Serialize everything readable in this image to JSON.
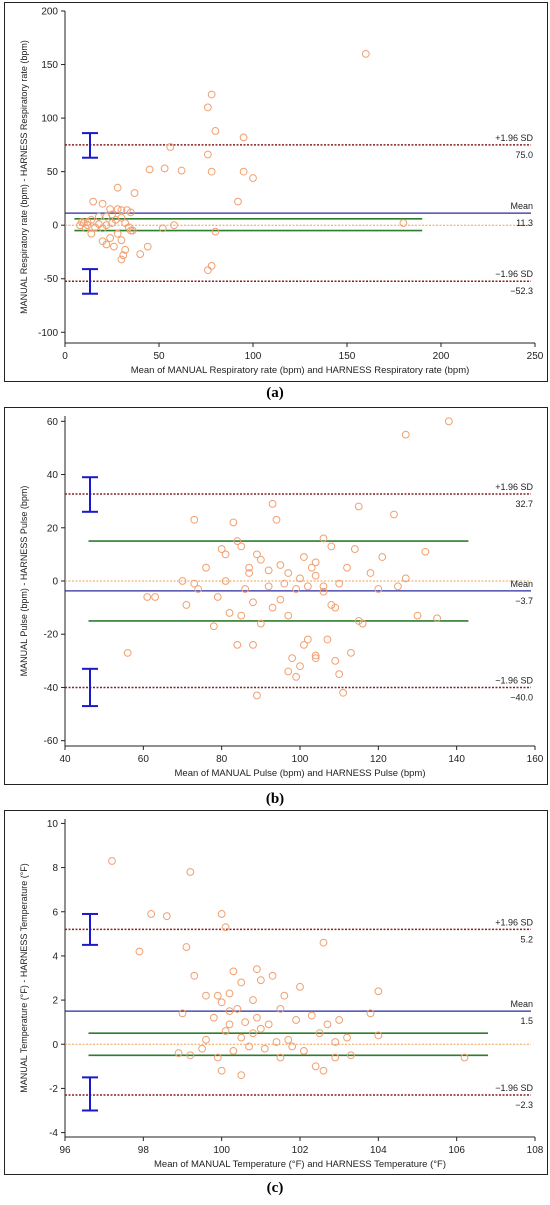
{
  "colors": {
    "point": "#f0a070",
    "mean": "#2a2aa0",
    "loa": "#8b2020",
    "green": "#2e7d2e",
    "zero": "#f0a050",
    "ci": "#1a1acc",
    "axis": "#222222"
  },
  "chart_data": [
    {
      "type": "scatter",
      "caption": "(a)",
      "xlabel": "Mean of MANUAL Respiratory rate (bpm) and HARNESS Respiratory rate (bpm)",
      "ylabel": "MANUAL Respiratory rate (bpm) - HARNESS Respiratory rate (bpm)",
      "xlim": [
        0,
        250
      ],
      "ylim": [
        -110,
        200
      ],
      "xticks": [
        0,
        50,
        100,
        150,
        200,
        250
      ],
      "yticks": [
        -100,
        -50,
        0,
        50,
        100,
        150,
        200
      ],
      "mean": 11.3,
      "upper_loa": 75.0,
      "lower_loa": -52.3,
      "labels": {
        "upper": "+1.96 SD",
        "upper_value": "75.0",
        "mean": "Mean",
        "mean_value": "11.3",
        "lower": "−1.96 SD",
        "lower_value": "−52.3"
      },
      "upper_ci": [
        63,
        86
      ],
      "lower_ci": [
        -64,
        -41
      ],
      "green_lines": [
        6,
        -5
      ],
      "green_xrange": [
        5,
        190
      ],
      "points": [
        [
          160,
          160
        ],
        [
          78,
          122
        ],
        [
          76,
          110
        ],
        [
          80,
          88
        ],
        [
          95,
          82
        ],
        [
          56,
          73
        ],
        [
          76,
          66
        ],
        [
          95,
          50
        ],
        [
          78,
          50
        ],
        [
          100,
          44
        ],
        [
          45,
          52
        ],
        [
          53,
          53
        ],
        [
          62,
          51
        ],
        [
          28,
          35
        ],
        [
          37,
          30
        ],
        [
          20,
          20
        ],
        [
          15,
          22
        ],
        [
          24,
          15
        ],
        [
          28,
          15
        ],
        [
          30,
          14
        ],
        [
          33,
          14
        ],
        [
          35,
          12
        ],
        [
          25,
          10
        ],
        [
          22,
          8
        ],
        [
          18,
          8
        ],
        [
          14,
          5
        ],
        [
          12,
          3
        ],
        [
          10,
          2
        ],
        [
          8,
          0
        ],
        [
          12,
          0
        ],
        [
          16,
          -2
        ],
        [
          20,
          -3
        ],
        [
          18,
          1
        ],
        [
          22,
          0
        ],
        [
          25,
          2
        ],
        [
          27,
          5
        ],
        [
          30,
          7
        ],
        [
          32,
          2
        ],
        [
          34,
          -2
        ],
        [
          36,
          -5
        ],
        [
          28,
          -8
        ],
        [
          24,
          -12
        ],
        [
          20,
          -15
        ],
        [
          22,
          -18
        ],
        [
          30,
          -14
        ],
        [
          32,
          -23
        ],
        [
          31,
          -28
        ],
        [
          40,
          -27
        ],
        [
          44,
          -20
        ],
        [
          52,
          -3
        ],
        [
          58,
          0
        ],
        [
          80,
          -6
        ],
        [
          92,
          22
        ],
        [
          14,
          -8
        ],
        [
          11,
          -3
        ],
        [
          9,
          3
        ],
        [
          180,
          2
        ],
        [
          76,
          -42
        ],
        [
          78,
          -38
        ],
        [
          30,
          -32
        ],
        [
          26,
          -20
        ],
        [
          35,
          -5
        ]
      ]
    },
    {
      "type": "scatter",
      "caption": "(b)",
      "xlabel": "Mean of MANUAL Pulse (bpm) and HARNESS Pulse (bpm)",
      "ylabel": "MANUAL Pulse (bpm) - HARNESS Pulse (bpm)",
      "xlim": [
        40,
        160
      ],
      "ylim": [
        -62,
        62
      ],
      "xticks": [
        40,
        60,
        80,
        100,
        120,
        140,
        160
      ],
      "yticks": [
        -60,
        -40,
        -20,
        0,
        20,
        40,
        60
      ],
      "mean": -3.7,
      "upper_loa": 32.7,
      "lower_loa": -40.0,
      "labels": {
        "upper": "+1.96 SD",
        "upper_value": "32.7",
        "mean": "Mean",
        "mean_value": "−3.7",
        "lower": "−1.96 SD",
        "lower_value": "−40.0"
      },
      "upper_ci": [
        26,
        39
      ],
      "lower_ci": [
        -47,
        -33
      ],
      "green_lines": [
        15,
        -15
      ],
      "green_xrange": [
        46,
        143
      ],
      "points": [
        [
          138,
          60
        ],
        [
          127,
          55
        ],
        [
          93,
          29
        ],
        [
          115,
          28
        ],
        [
          124,
          25
        ],
        [
          73,
          23
        ],
        [
          83,
          22
        ],
        [
          94,
          23
        ],
        [
          84,
          15
        ],
        [
          106,
          16
        ],
        [
          132,
          11
        ],
        [
          114,
          12
        ],
        [
          121,
          9
        ],
        [
          80,
          12
        ],
        [
          81,
          10
        ],
        [
          85,
          13
        ],
        [
          89,
          10
        ],
        [
          90,
          8
        ],
        [
          101,
          9
        ],
        [
          104,
          7
        ],
        [
          108,
          13
        ],
        [
          87,
          5
        ],
        [
          92,
          4
        ],
        [
          97,
          3
        ],
        [
          100,
          1
        ],
        [
          104,
          2
        ],
        [
          112,
          5
        ],
        [
          118,
          3
        ],
        [
          127,
          1
        ],
        [
          76,
          5
        ],
        [
          73,
          -1
        ],
        [
          70,
          0
        ],
        [
          61,
          -6
        ],
        [
          63,
          -6
        ],
        [
          71,
          -9
        ],
        [
          79,
          -6
        ],
        [
          86,
          -3
        ],
        [
          92,
          -2
        ],
        [
          96,
          -1
        ],
        [
          99,
          -3
        ],
        [
          102,
          -2
        ],
        [
          106,
          -2
        ],
        [
          108,
          -9
        ],
        [
          109,
          -10
        ],
        [
          115,
          -15
        ],
        [
          116,
          -16
        ],
        [
          130,
          -13
        ],
        [
          135,
          -14
        ],
        [
          93,
          -10
        ],
        [
          95,
          -7
        ],
        [
          97,
          -13
        ],
        [
          101,
          -24
        ],
        [
          102,
          -22
        ],
        [
          104,
          -28
        ],
        [
          104,
          -29
        ],
        [
          98,
          -29
        ],
        [
          100,
          -32
        ],
        [
          97,
          -34
        ],
        [
          99,
          -36
        ],
        [
          107,
          -22
        ],
        [
          109,
          -30
        ],
        [
          113,
          -27
        ],
        [
          110,
          -35
        ],
        [
          111,
          -42
        ],
        [
          89,
          -43
        ],
        [
          88,
          -24
        ],
        [
          84,
          -24
        ],
        [
          82,
          -12
        ],
        [
          78,
          -17
        ],
        [
          85,
          -13
        ],
        [
          90,
          -16
        ],
        [
          74,
          -3
        ],
        [
          56,
          -27
        ],
        [
          81,
          0
        ],
        [
          87,
          3
        ],
        [
          95,
          6
        ],
        [
          103,
          5
        ],
        [
          106,
          -4
        ],
        [
          110,
          -1
        ],
        [
          120,
          -3
        ],
        [
          125,
          -2
        ],
        [
          88,
          -8
        ]
      ]
    },
    {
      "type": "scatter",
      "caption": "(c)",
      "xlabel": "Mean of MANUAL Temperature (°F) and HARNESS Temperature (°F)",
      "ylabel": "MANUAL Temperature (°F) - HARNESS Temperature (°F)",
      "xlim": [
        96,
        108
      ],
      "ylim": [
        -4.2,
        10.2
      ],
      "xticks": [
        96,
        98,
        100,
        102,
        104,
        106,
        108
      ],
      "yticks": [
        -4,
        -2,
        0,
        2,
        4,
        6,
        8,
        10
      ],
      "mean": 1.5,
      "upper_loa": 5.2,
      "lower_loa": -2.3,
      "labels": {
        "upper": "+1.96 SD",
        "upper_value": "5.2",
        "mean": "Mean",
        "mean_value": "1.5",
        "lower": "−1.96 SD",
        "lower_value": "−2.3"
      },
      "upper_ci": [
        4.5,
        5.9
      ],
      "lower_ci": [
        -3.0,
        -1.5
      ],
      "green_lines": [
        0.5,
        -0.5
      ],
      "green_xrange": [
        96.6,
        106.8
      ],
      "points": [
        [
          97.2,
          8.3
        ],
        [
          99.2,
          7.8
        ],
        [
          98.2,
          5.9
        ],
        [
          98.6,
          5.8
        ],
        [
          100.0,
          5.9
        ],
        [
          100.1,
          5.3
        ],
        [
          102.6,
          4.6
        ],
        [
          99.1,
          4.4
        ],
        [
          97.9,
          4.2
        ],
        [
          100.9,
          3.4
        ],
        [
          101.3,
          3.1
        ],
        [
          101.0,
          2.9
        ],
        [
          99.3,
          3.1
        ],
        [
          100.3,
          3.3
        ],
        [
          100.5,
          2.8
        ],
        [
          100.2,
          2.3
        ],
        [
          99.9,
          2.2
        ],
        [
          100.0,
          1.9
        ],
        [
          99.6,
          2.2
        ],
        [
          100.8,
          2.0
        ],
        [
          101.6,
          2.2
        ],
        [
          102.0,
          2.6
        ],
        [
          104.0,
          2.4
        ],
        [
          99.0,
          1.4
        ],
        [
          99.8,
          1.2
        ],
        [
          100.2,
          1.5
        ],
        [
          100.4,
          1.6
        ],
        [
          100.6,
          1.0
        ],
        [
          100.9,
          1.2
        ],
        [
          101.2,
          0.9
        ],
        [
          101.5,
          1.6
        ],
        [
          101.9,
          1.1
        ],
        [
          102.3,
          1.3
        ],
        [
          102.7,
          0.9
        ],
        [
          103.0,
          1.1
        ],
        [
          103.8,
          1.4
        ],
        [
          100.1,
          0.6
        ],
        [
          100.5,
          0.3
        ],
        [
          100.8,
          0.5
        ],
        [
          101.0,
          0.7
        ],
        [
          101.4,
          0.1
        ],
        [
          101.7,
          0.2
        ],
        [
          102.1,
          -0.3
        ],
        [
          102.5,
          0.5
        ],
        [
          102.9,
          0.1
        ],
        [
          103.2,
          0.3
        ],
        [
          104.0,
          0.4
        ],
        [
          98.9,
          -0.4
        ],
        [
          99.5,
          -0.2
        ],
        [
          99.9,
          -0.6
        ],
        [
          100.3,
          -0.3
        ],
        [
          100.7,
          -0.1
        ],
        [
          101.1,
          -0.2
        ],
        [
          101.5,
          -0.6
        ],
        [
          102.4,
          -1.0
        ],
        [
          102.9,
          -0.6
        ],
        [
          103.3,
          -0.5
        ],
        [
          100.0,
          -1.2
        ],
        [
          100.5,
          -1.4
        ],
        [
          102.6,
          -1.2
        ],
        [
          106.2,
          -0.6
        ],
        [
          99.6,
          0.2
        ],
        [
          100.2,
          0.9
        ],
        [
          101.8,
          -0.1
        ],
        [
          99.2,
          -0.5
        ]
      ]
    }
  ]
}
